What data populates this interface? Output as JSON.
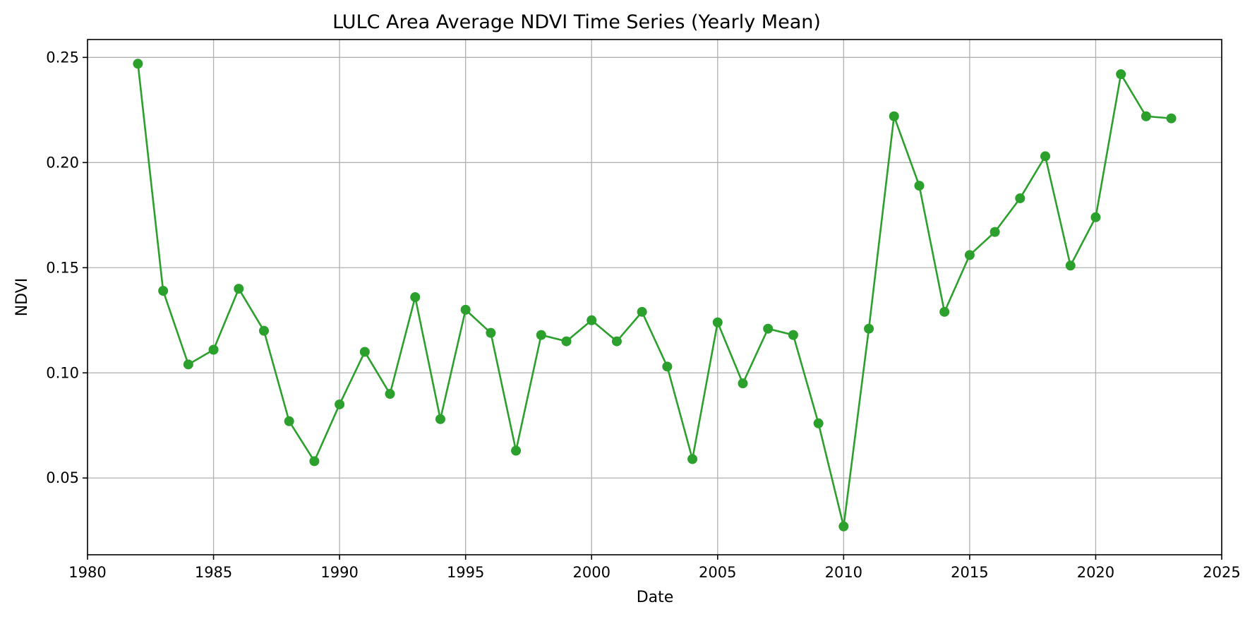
{
  "chart_data": {
    "type": "line",
    "title": "LULC Area Average NDVI Time Series (Yearly Mean)",
    "xlabel": "Date",
    "ylabel": "NDVI",
    "xlim": [
      1980,
      2025
    ],
    "ylim": [
      0.0135,
      0.2585
    ],
    "x_ticks": [
      1980,
      1985,
      1990,
      1995,
      2000,
      2005,
      2010,
      2015,
      2020,
      2025
    ],
    "y_ticks": [
      "0.05",
      "0.10",
      "0.15",
      "0.20",
      "0.25"
    ],
    "grid": true,
    "legend": "none",
    "series": [
      {
        "color": "#2ca02c",
        "marker": "circle",
        "x": [
          1982,
          1983,
          1984,
          1985,
          1986,
          1987,
          1988,
          1989,
          1990,
          1991,
          1992,
          1993,
          1994,
          1995,
          1996,
          1997,
          1998,
          1999,
          2000,
          2001,
          2002,
          2003,
          2004,
          2005,
          2006,
          2007,
          2008,
          2009,
          2010,
          2011,
          2012,
          2013,
          2014,
          2015,
          2016,
          2017,
          2018,
          2019,
          2020,
          2021,
          2022,
          2023
        ],
        "y": [
          0.247,
          0.139,
          0.104,
          0.111,
          0.14,
          0.12,
          0.077,
          0.058,
          0.085,
          0.11,
          0.09,
          0.136,
          0.078,
          0.13,
          0.119,
          0.063,
          0.118,
          0.115,
          0.125,
          0.115,
          0.129,
          0.103,
          0.059,
          0.124,
          0.095,
          0.121,
          0.118,
          0.076,
          0.027,
          0.121,
          0.222,
          0.189,
          0.129,
          0.156,
          0.167,
          0.183,
          0.203,
          0.151,
          0.174,
          0.242,
          0.222,
          0.221
        ]
      }
    ]
  }
}
